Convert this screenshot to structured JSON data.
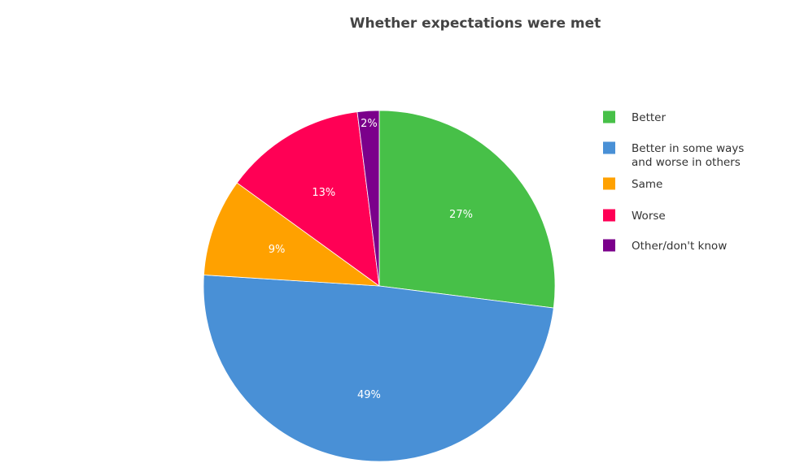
{
  "chart_data": {
    "type": "pie",
    "title": "Whether expectations were met",
    "legend_position": "right",
    "start_angle_deg": 0,
    "direction": "clockwise",
    "slices": [
      {
        "legend": [
          "Better"
        ],
        "value": 27,
        "label": "27%",
        "color": "#47c048"
      },
      {
        "legend": [
          "Better in some ways",
          "and worse in others"
        ],
        "value": 49,
        "label": "49%",
        "color": "#4990d6"
      },
      {
        "legend": [
          "Same"
        ],
        "value": 9,
        "label": "9%",
        "color": "#ffa100"
      },
      {
        "legend": [
          "Worse"
        ],
        "value": 13,
        "label": "13%",
        "color": "#ff0055"
      },
      {
        "legend": [
          "Other/don't know"
        ],
        "value": 2,
        "label": "2%",
        "color": "#7b008b"
      }
    ]
  }
}
